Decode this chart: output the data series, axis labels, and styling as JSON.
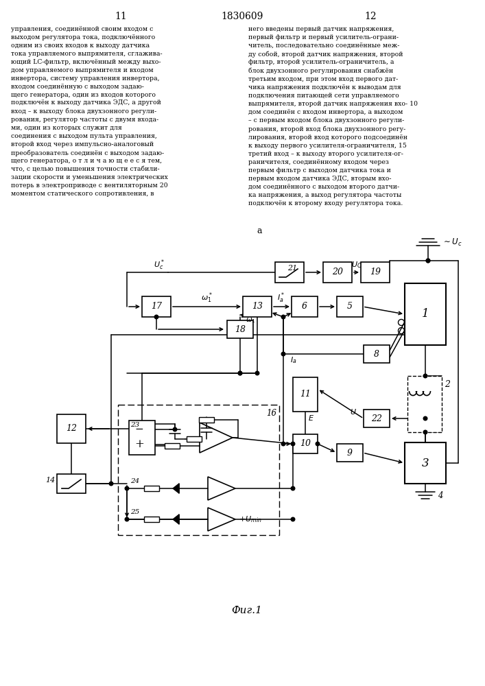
{
  "patent_number": "1830609",
  "page_left": "11",
  "page_right": "12",
  "fig_label": "Фиг.1",
  "bg_color": "#ffffff",
  "left_text": "управления, соединённой своим входом с\nвыходом регулятора тока, подключённого\nодним из своих входов к выходу датчика\nтока управляемого выпрямителя, сглажива-\nющий LC-фильтр, включённый между выхо-\nдом управляемого выпрямителя и входом\nинвертора, систему управления инвертора,\nвходом соединённую с выходом задаю-\nщего генератора, один из входов которого\nподключён к выходу датчика ЭДС, а другой\nвход – к выходу блока двухзонного регули-\nрования, регулятор частоты с двумя входа-\nми, один из которых служит для\nсоединения с выходом пульта управления,\nвторой вход через импульсно-аналоговый\nпреобразователь соединён с выходом задаю-\nщего генератора, о т л и ч а ю щ е е с я тем,\nчто, с целью повышения точности стабили-\nзации скорости и уменьшения электрических\nпотерь в электроприводе с вентиляторным 20\nмоментом статического сопротивления, в",
  "right_text": "него введены первый датчик напряжения,\nпервый фильтр и первый усилитель-ограни-\nчитель, последовательно соединённые меж-\nду собой, второй датчик напряжения, второй\nфильтр, второй усилитель-ограничитель, а\nблок двухзонного регулирования снабжён\nтретьим входом, при этом вход первого дат-\nчика напряжения подключён к выводам для\nподключения питающей сети управляемого\nвыпрямителя, второй датчик напряжения вхо- 10\nдом соединён с входом инвертора, а выходом\n– с первым входом блока двухзонного регули-\nрования, второй вход блока двухзонного регу-\nлирования, второй вход которого подсоединён\nк выходу первого усилителя-ограничителя, 15\nтретий вход – к выходу второго усилителя-ог-\nраничителя, соединённому входом через\nпервым фильтр с выходом датчика тока и\nпервым входом датчика ЭДС, вторым вхо-\nдом соединённого с выходом второго датчи-\nка напряжения, а выход регулятора частоты\nподключён к второму входу регулятора тока."
}
